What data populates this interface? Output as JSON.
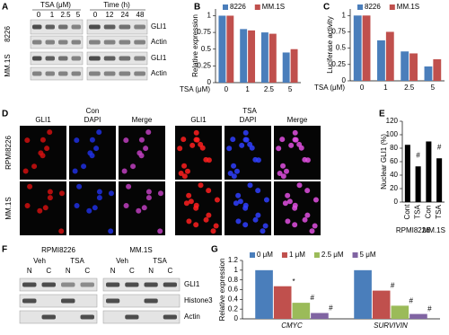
{
  "panel_a": {
    "letter": "A",
    "tsa": "TSA (μM)",
    "time": "Time (h)",
    "doses": [
      "0",
      "1",
      "2.5",
      "5"
    ],
    "times": [
      "0",
      "12",
      "24",
      "48"
    ],
    "cell_lines": [
      "8226",
      "MM.1S"
    ],
    "bands": [
      "GLI1",
      "Actin",
      "GLI1",
      "Actin"
    ]
  },
  "panel_d": {
    "letter": "D",
    "groups": [
      "Con",
      "TSA"
    ],
    "channels": [
      "GLI1",
      "DAPI",
      "Merge"
    ],
    "rows": [
      "RPMI8226",
      "MM.1S"
    ]
  },
  "panel_f": {
    "letter": "F",
    "cell_lines": [
      "RPMI8226",
      "MM.1S"
    ],
    "treatments": [
      "Veh",
      "TSA"
    ],
    "fractions": [
      "N",
      "C"
    ],
    "bands": [
      "GLI1",
      "Histone3",
      "Actin"
    ]
  },
  "chart_data": [
    {
      "panel": "B",
      "type": "bar",
      "y_label": "Relative expression",
      "x_label": "TSA (μM)",
      "categories": [
        "0",
        "1",
        "2.5",
        "5"
      ],
      "series": [
        {
          "name": "8226",
          "color": "#4a7ebb",
          "values": [
            1,
            0.8,
            0.75,
            0.45
          ]
        },
        {
          "name": "MM.1S",
          "color": "#c0504d",
          "values": [
            1,
            0.78,
            0.73,
            0.5
          ]
        }
      ],
      "ylim": [
        0,
        1.1
      ],
      "yticks": [
        0,
        0.25,
        0.5,
        0.75,
        1
      ]
    },
    {
      "panel": "C",
      "type": "bar",
      "y_label": "Luciferase activity",
      "x_label": "TSA (μM)",
      "categories": [
        "0",
        "1",
        "2.5",
        "5"
      ],
      "series": [
        {
          "name": "8226",
          "color": "#4a7ebb",
          "values": [
            1,
            0.62,
            0.45,
            0.22
          ]
        },
        {
          "name": "MM.1S",
          "color": "#c0504d",
          "values": [
            1,
            0.75,
            0.42,
            0.33
          ]
        }
      ],
      "ylim": [
        0,
        1.1
      ],
      "yticks": [
        0,
        0.25,
        0.5,
        0.75,
        1
      ]
    },
    {
      "panel": "E",
      "type": "bar",
      "y_label": "Nuclear GLI1 (%)",
      "categories": [
        "Cont",
        "TSA",
        "Con",
        "TSA"
      ],
      "groups": [
        "RPMI8226",
        "MM.1S"
      ],
      "series": [
        {
          "color": "#000000",
          "values": [
            85,
            53,
            90,
            65
          ],
          "significance": [
            null,
            "#",
            null,
            "#"
          ]
        }
      ],
      "ylim": [
        0,
        120
      ],
      "yticks": [
        0,
        20,
        40,
        60,
        80,
        100,
        120
      ]
    },
    {
      "panel": "G",
      "type": "bar",
      "y_label": "Relative expression",
      "categories": [
        "CMYC",
        "SURVIVIN"
      ],
      "series": [
        {
          "name": "0 μM",
          "color": "#4a7ebb",
          "values": [
            1,
            1
          ]
        },
        {
          "name": "1 μM",
          "color": "#c0504d",
          "values": [
            0.67,
            0.58
          ],
          "significance": [
            "*",
            "#"
          ]
        },
        {
          "name": "2.5 μM",
          "color": "#9bbb59",
          "values": [
            0.33,
            0.27
          ],
          "significance": [
            "#",
            "#"
          ]
        },
        {
          "name": "5 μM",
          "color": "#8064a2",
          "values": [
            0.12,
            0.1
          ],
          "significance": [
            "#",
            "#"
          ]
        }
      ],
      "ylim": [
        0,
        1.2
      ],
      "yticks": [
        0,
        0.2,
        0.4,
        0.6,
        0.8,
        1,
        1.2
      ]
    }
  ]
}
